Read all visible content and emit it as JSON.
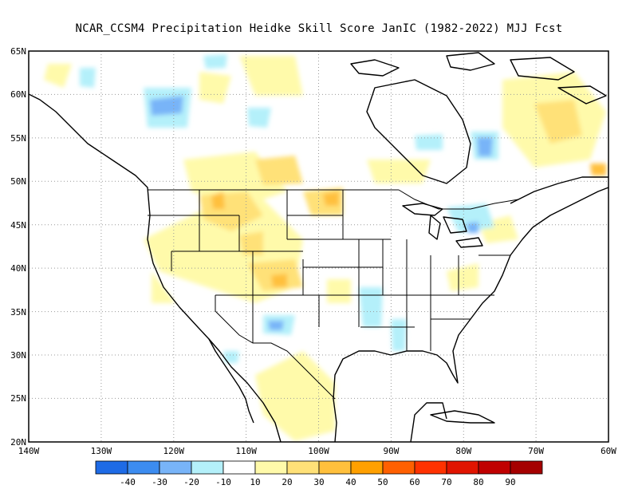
{
  "title": "NCAR_CCSM4  Precipitation Heidke Skill Score JanIC (1982-2022) MJJ Fcst",
  "lat_labels": [
    "65N",
    "60N",
    "55N",
    "50N",
    "45N",
    "40N",
    "35N",
    "30N",
    "25N",
    "20N"
  ],
  "lon_labels": [
    "140W",
    "130W",
    "120W",
    "110W",
    "100W",
    "90W",
    "80W",
    "70W",
    "60W"
  ],
  "colorbar": {
    "colors": [
      "#1e6be6",
      "#3c8cf0",
      "#78b4f8",
      "#b4f0fa",
      "#ffffff",
      "#fffaaa",
      "#ffe178",
      "#ffc03c",
      "#ffa000",
      "#ff6000",
      "#ff3200",
      "#e11400",
      "#c00000",
      "#a50000"
    ],
    "labels": [
      "-40",
      "-30",
      "-20",
      "-10",
      "10",
      "20",
      "30",
      "40",
      "50",
      "60",
      "70",
      "80",
      "90"
    ]
  },
  "map": {
    "region": "North America",
    "projection": "cylindrical equidistant",
    "lon_range": [
      -140,
      -60
    ],
    "lat_range": [
      20,
      65
    ],
    "gridlines": "dotted",
    "field": "Precipitation Heidke Skill Score"
  }
}
